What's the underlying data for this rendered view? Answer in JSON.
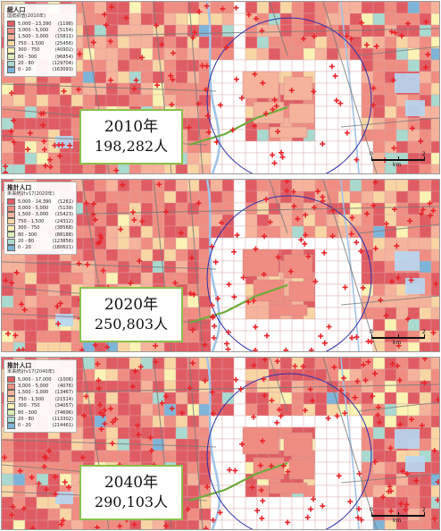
{
  "panels": [
    {
      "legend_title": "総人口",
      "legend_subtitle": "国勢調査(2010年)",
      "legend_rows": [
        {
          "range": "5,000 - 13,390",
          "count": "(1198)",
          "color": "#e05c63"
        },
        {
          "range": "3,000 - 5,000",
          "count": "(5154)",
          "color": "#ef8d82"
        },
        {
          "range": "1,500 - 3,000",
          "count": "(15811)",
          "color": "#f5b39b"
        },
        {
          "range": "750 - 1,500",
          "count": "(25456)",
          "color": "#f8d6a4"
        },
        {
          "range": "300 - 750",
          "count": "(40902)",
          "color": "#fbf3b4"
        },
        {
          "range": "80 - 300",
          "count": "(96854)",
          "color": "#dcefb8"
        },
        {
          "range": "20 - 80",
          "count": "(129704)",
          "color": "#a9d9cf"
        },
        {
          "range": "0 - 20",
          "count": "(163093)",
          "color": "#7eb4d8"
        }
      ],
      "callout_year": "2010年",
      "callout_population": "198,282人"
    },
    {
      "legend_title": "推計人口",
      "legend_subtitle": "未来統計v17(2020年)",
      "legend_rows": [
        {
          "range": "5,000 - 14,390",
          "count": "(1261)",
          "color": "#e05c63"
        },
        {
          "range": "3,000 - 5,000",
          "count": "(5139)",
          "color": "#ef8d82"
        },
        {
          "range": "1,500 - 3,000",
          "count": "(15423)",
          "color": "#f5b39b"
        },
        {
          "range": "750 - 1,500",
          "count": "(24312)",
          "color": "#f8d6a4"
        },
        {
          "range": "300 - 750",
          "count": "(38568)",
          "color": "#fbf3b4"
        },
        {
          "range": "80 - 300",
          "count": "(88188)",
          "color": "#dcefb8"
        },
        {
          "range": "20 - 80",
          "count": "(123856)",
          "color": "#a9d9cf"
        },
        {
          "range": "0 - 20",
          "count": "(180621)",
          "color": "#7eb4d8"
        }
      ],
      "callout_year": "2020年",
      "callout_population": "250,803人"
    },
    {
      "legend_title": "推計人口",
      "legend_subtitle": "未来統計v17(2040年)",
      "legend_rows": [
        {
          "range": "5,000 - 17,000",
          "count": "(1006)",
          "color": "#e05c63"
        },
        {
          "range": "3,000 - 5,000",
          "count": "(4076)",
          "color": "#ef8d82"
        },
        {
          "range": "1,500 - 3,000",
          "count": "(13467)",
          "color": "#f5b39b"
        },
        {
          "range": "750 - 1,500",
          "count": "(21514)",
          "color": "#f8d6a4"
        },
        {
          "range": "300 - 750",
          "count": "(34057)",
          "color": "#fbf3b4"
        },
        {
          "range": "80 - 300",
          "count": "(74696)",
          "color": "#dcefb8"
        },
        {
          "range": "20 - 80",
          "count": "(113302)",
          "color": "#a9d9cf"
        },
        {
          "range": "0 - 20",
          "count": "(214461)",
          "color": "#7eb4d8"
        }
      ],
      "callout_year": "2040年",
      "callout_population": "290,103人"
    }
  ],
  "scale": {
    "zero": "0",
    "max": "2",
    "unit": "km"
  },
  "map_colors": {
    "sea": "#ffffff",
    "road": "#7a7a7a",
    "highlight_line": "#6dab3b",
    "circle": "#2b2fa8",
    "marker": "#e8242a",
    "industrial": "#b6d7f2",
    "canal": "#9fc3e8"
  }
}
